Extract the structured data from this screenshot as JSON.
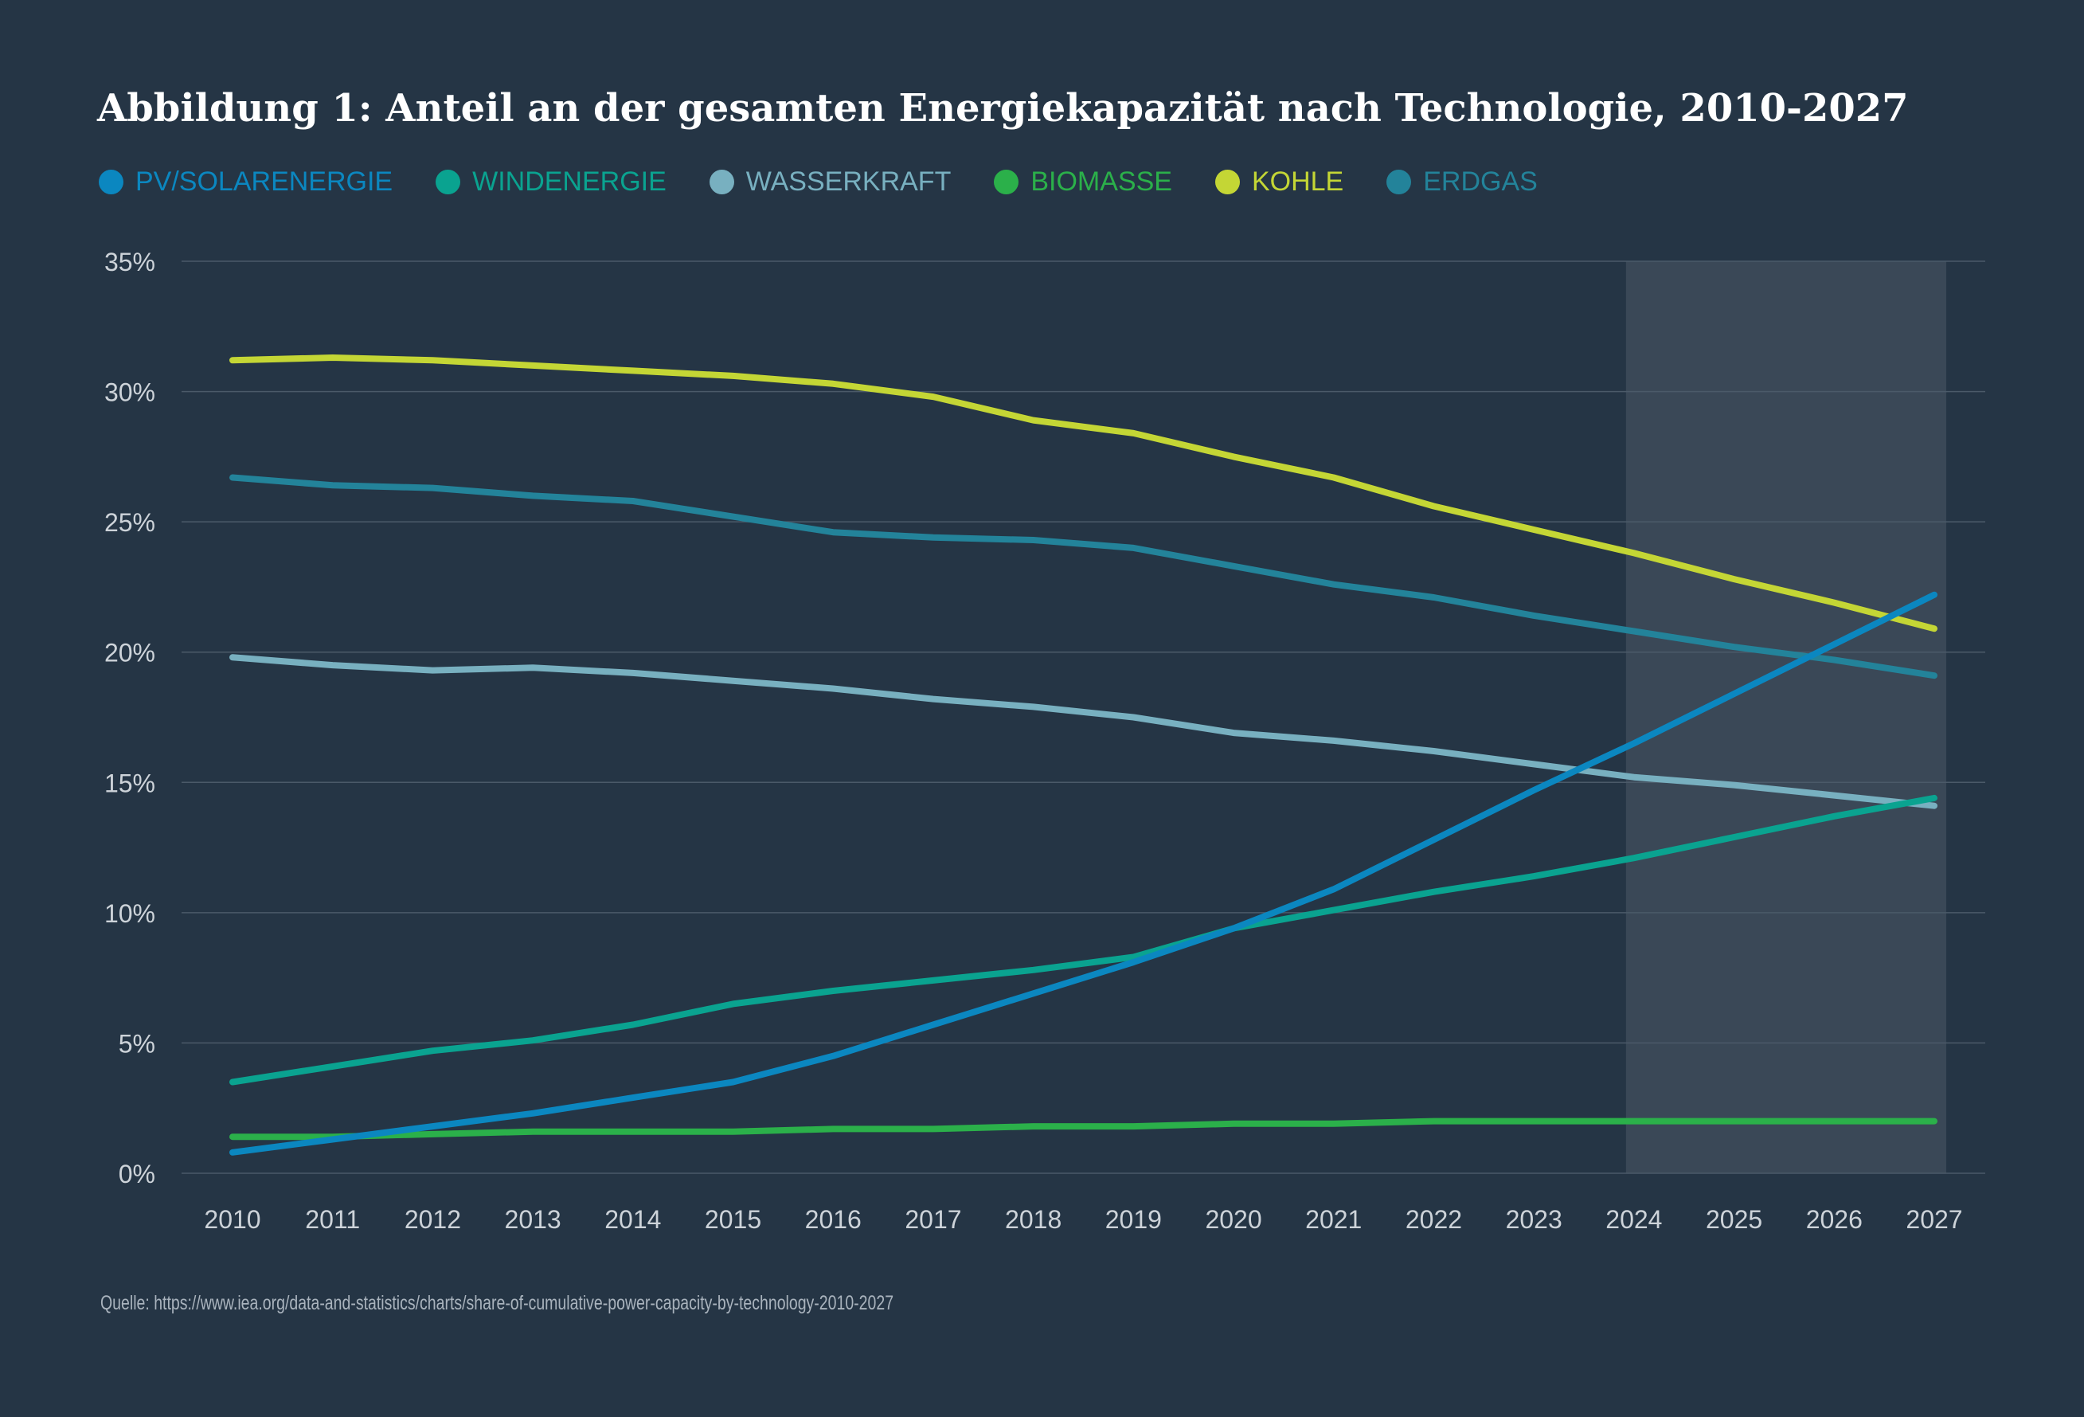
{
  "colors": {
    "background": "#253545",
    "forecast_band": "#3a4857",
    "grid": "#4b5a69",
    "tick_text": "#cdd3d9"
  },
  "chart_data": {
    "type": "line",
    "title": "Abbildung 1: Anteil an der gesamten Energiekapazität nach Technologie, 2010-2027",
    "xlabel": "",
    "ylabel": "",
    "x": [
      2010,
      2011,
      2012,
      2013,
      2014,
      2015,
      2016,
      2017,
      2018,
      2019,
      2020,
      2021,
      2022,
      2023,
      2024,
      2025,
      2026,
      2027
    ],
    "x_tick_labels": [
      "2010",
      "2011",
      "2012",
      "2013",
      "2014",
      "2015",
      "2016",
      "2017",
      "2018",
      "2019",
      "2020",
      "2021",
      "2022",
      "2023",
      "2024",
      "2025",
      "2026",
      "2027"
    ],
    "ylim": [
      0,
      35
    ],
    "y_ticks": [
      0,
      5,
      10,
      15,
      20,
      25,
      30,
      35
    ],
    "y_tick_labels": [
      "0%",
      "5%",
      "10%",
      "15%",
      "20%",
      "25%",
      "30%",
      "35%"
    ],
    "grid": true,
    "legend_position": "top",
    "forecast_band": [
      2024,
      2027
    ],
    "series": [
      {
        "name": "PV/SOLARENERGIE",
        "color": "#0b87c0",
        "values": [
          0.8,
          1.3,
          1.8,
          2.3,
          2.9,
          3.5,
          4.5,
          5.7,
          6.9,
          8.1,
          9.4,
          10.9,
          12.8,
          14.7,
          16.5,
          18.4,
          20.3,
          22.2
        ]
      },
      {
        "name": "WINDENERGIE",
        "color": "#0aa390",
        "values": [
          3.5,
          4.1,
          4.7,
          5.1,
          5.7,
          6.5,
          7.0,
          7.4,
          7.8,
          8.3,
          9.4,
          10.1,
          10.8,
          11.4,
          12.1,
          12.9,
          13.7,
          14.4
        ]
      },
      {
        "name": "WASSERKRAFT",
        "color": "#78b0c0",
        "values": [
          19.8,
          19.5,
          19.3,
          19.4,
          19.2,
          18.9,
          18.6,
          18.2,
          17.9,
          17.5,
          16.9,
          16.6,
          16.2,
          15.7,
          15.2,
          14.9,
          14.5,
          14.1
        ]
      },
      {
        "name": "BIOMASSE",
        "color": "#2bb04a",
        "values": [
          1.4,
          1.4,
          1.5,
          1.6,
          1.6,
          1.6,
          1.7,
          1.7,
          1.8,
          1.8,
          1.9,
          1.9,
          2.0,
          2.0,
          2.0,
          2.0,
          2.0,
          2.0
        ]
      },
      {
        "name": "KOHLE",
        "color": "#c4d635",
        "values": [
          31.2,
          31.3,
          31.2,
          31.0,
          30.8,
          30.6,
          30.3,
          29.8,
          28.9,
          28.4,
          27.5,
          26.7,
          25.6,
          24.7,
          23.8,
          22.8,
          21.9,
          20.9
        ]
      },
      {
        "name": "ERDGAS",
        "color": "#23839a",
        "values": [
          26.7,
          26.4,
          26.3,
          26.0,
          25.8,
          25.2,
          24.6,
          24.4,
          24.3,
          24.0,
          23.3,
          22.6,
          22.1,
          21.4,
          20.8,
          20.2,
          19.7,
          19.1
        ]
      }
    ],
    "source": "Quelle: https://www.iea.org/data-and-statistics/charts/share-of-cumulative-power-capacity-by-technology-2010-2027"
  }
}
